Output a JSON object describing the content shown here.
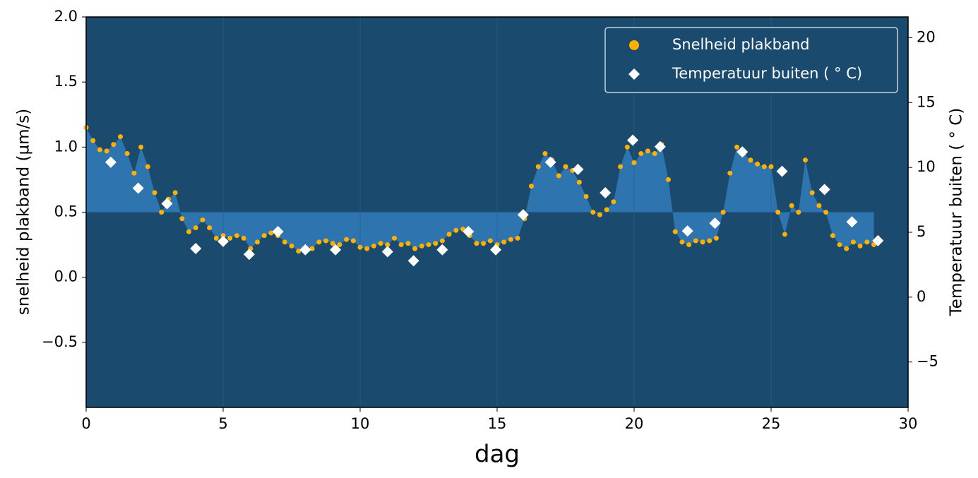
{
  "chart_data": {
    "type": "scatter",
    "xlabel": "dag",
    "ylabel": "snelheid plakband (µm/s)",
    "y2label": "Temperatuur buiten ( ° C)",
    "xlim": [
      0,
      30
    ],
    "xticks": [
      0,
      5,
      10,
      15,
      20,
      25,
      30
    ],
    "ylim": [
      -1.0,
      2.0
    ],
    "yticks": [
      {
        "value": 2.0,
        "label": "2.0"
      },
      {
        "value": 1.5,
        "label": "1.5"
      },
      {
        "value": 1.0,
        "label": "1.0"
      },
      {
        "value": 0.5,
        "label": "0.5"
      },
      {
        "value": 0.0,
        "label": "0.0"
      },
      {
        "value": -0.5,
        "label": "−0.5"
      }
    ],
    "y2lim": [
      -8.5,
      21.6
    ],
    "y2ticks": [
      20,
      15,
      10,
      5,
      0,
      {
        "value": -5,
        "label": "−5"
      }
    ],
    "grid": "x",
    "legend": "upper right",
    "fill_baseline": 0.5,
    "fill_color": "#2e75b0",
    "background": "#1a4a6e",
    "series": [
      {
        "name": "Snelheid plakband",
        "color": "#ffb000",
        "marker": "circle",
        "fill": true,
        "x": [
          0,
          0.25,
          0.5,
          0.75,
          1,
          1.25,
          1.5,
          1.75,
          2,
          2.25,
          2.5,
          2.75,
          3,
          3.25,
          3.5,
          3.75,
          4,
          4.25,
          4.5,
          4.75,
          5,
          5.25,
          5.5,
          5.75,
          6,
          6.25,
          6.5,
          6.75,
          7,
          7.25,
          7.5,
          7.75,
          8,
          8.25,
          8.5,
          8.75,
          9,
          9.25,
          9.5,
          9.75,
          10,
          10.25,
          10.5,
          10.75,
          11,
          11.25,
          11.5,
          11.75,
          12,
          12.25,
          12.5,
          12.75,
          13,
          13.25,
          13.5,
          13.75,
          14,
          14.25,
          14.5,
          14.75,
          15,
          15.25,
          15.5,
          15.75,
          16,
          16.25,
          16.5,
          16.75,
          17,
          17.25,
          17.5,
          17.75,
          18,
          18.25,
          18.5,
          18.75,
          19,
          19.25,
          19.5,
          19.75,
          20,
          20.25,
          20.5,
          20.75,
          21,
          21.25,
          21.5,
          21.75,
          22,
          22.25,
          22.5,
          22.75,
          23,
          23.25,
          23.5,
          23.75,
          24,
          24.25,
          24.5,
          24.75,
          25,
          25.25,
          25.5,
          25.75,
          26,
          26.25,
          26.5,
          26.75,
          27,
          27.25,
          27.5,
          27.75,
          28,
          28.25,
          28.5,
          28.75
        ],
        "values": [
          1.15,
          1.05,
          0.98,
          0.97,
          1.02,
          1.08,
          0.95,
          0.8,
          1.0,
          0.85,
          0.65,
          0.5,
          0.6,
          0.65,
          0.45,
          0.35,
          0.38,
          0.44,
          0.38,
          0.3,
          0.32,
          0.3,
          0.32,
          0.3,
          0.22,
          0.27,
          0.32,
          0.34,
          0.32,
          0.27,
          0.24,
          0.2,
          0.21,
          0.22,
          0.27,
          0.28,
          0.26,
          0.25,
          0.29,
          0.28,
          0.23,
          0.22,
          0.24,
          0.26,
          0.25,
          0.3,
          0.25,
          0.26,
          0.22,
          0.24,
          0.25,
          0.26,
          0.28,
          0.33,
          0.36,
          0.37,
          0.32,
          0.26,
          0.26,
          0.28,
          0.25,
          0.27,
          0.29,
          0.3,
          0.45,
          0.7,
          0.85,
          0.95,
          0.9,
          0.78,
          0.85,
          0.82,
          0.73,
          0.62,
          0.5,
          0.48,
          0.52,
          0.58,
          0.85,
          1.0,
          0.88,
          0.95,
          0.97,
          0.95,
          1.02,
          0.75,
          0.35,
          0.27,
          0.25,
          0.28,
          0.27,
          0.28,
          0.3,
          0.5,
          0.8,
          1.0,
          0.95,
          0.9,
          0.87,
          0.85,
          0.85,
          0.5,
          0.33,
          0.55,
          0.5,
          0.9,
          0.65,
          0.55,
          0.5,
          0.32,
          0.25,
          0.22,
          0.27,
          0.24,
          0.27,
          0.25
        ]
      },
      {
        "name": "Temperatuur buiten ( ° C)",
        "color": "#ffffff",
        "marker": "diamond",
        "axis": "y2",
        "x": [
          0.9,
          1.9,
          2.95,
          4.0,
          5.0,
          5.95,
          7.0,
          8.0,
          9.1,
          11.0,
          11.95,
          13.0,
          13.95,
          14.95,
          15.95,
          16.95,
          17.95,
          18.95,
          19.95,
          20.95,
          21.95,
          22.95,
          23.95,
          25.4,
          26.95,
          27.95,
          28.9
        ],
        "values": [
          10.4,
          8.4,
          7.2,
          3.75,
          4.3,
          3.3,
          5.05,
          3.65,
          3.65,
          3.5,
          2.8,
          3.65,
          5.05,
          3.65,
          6.35,
          10.4,
          9.85,
          8.05,
          12.1,
          11.6,
          5.1,
          5.7,
          11.2,
          9.7,
          8.3,
          5.8,
          4.35
        ]
      }
    ]
  }
}
